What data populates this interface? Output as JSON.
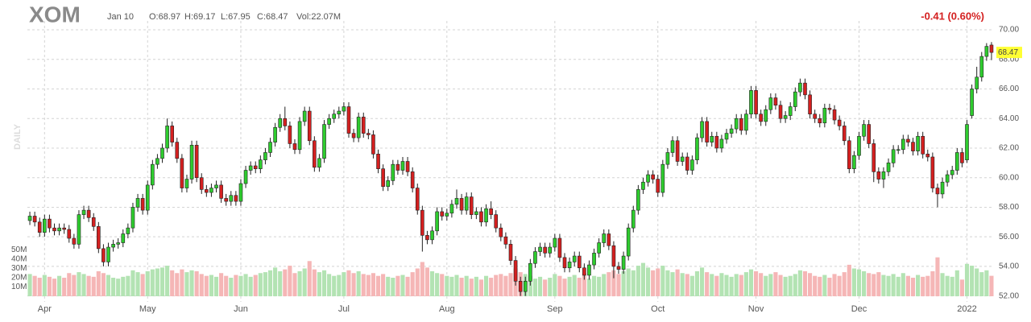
{
  "chart_data": {
    "type": "candlestick",
    "title": "XOM",
    "annotations": [
      "Jan 10",
      "O:68.97",
      "H:69.17",
      "L:67.95",
      "C:68.47",
      "Vol:22.07M"
    ],
    "change_label": "-0.41 (0.60%)",
    "last_label": "68.47",
    "period_label": "DAILY",
    "categories": [
      null,
      null,
      null,
      "Apr",
      null,
      null,
      null,
      null,
      null,
      null,
      null,
      null,
      null,
      null,
      null,
      null,
      null,
      null,
      null,
      null,
      null,
      null,
      null,
      null,
      "May",
      null,
      null,
      null,
      null,
      null,
      null,
      null,
      null,
      null,
      null,
      null,
      null,
      null,
      null,
      null,
      null,
      null,
      null,
      "Jun",
      null,
      null,
      null,
      null,
      null,
      null,
      null,
      null,
      null,
      null,
      null,
      null,
      null,
      null,
      null,
      null,
      null,
      null,
      null,
      null,
      "Jul",
      null,
      null,
      null,
      null,
      null,
      null,
      null,
      null,
      null,
      null,
      null,
      null,
      null,
      null,
      null,
      null,
      null,
      null,
      null,
      null,
      "Aug",
      null,
      null,
      null,
      null,
      null,
      null,
      null,
      null,
      null,
      null,
      null,
      null,
      null,
      null,
      null,
      null,
      null,
      null,
      null,
      null,
      null,
      "Sep",
      null,
      null,
      null,
      null,
      null,
      null,
      null,
      null,
      null,
      null,
      null,
      null,
      null,
      null,
      null,
      null,
      null,
      null,
      null,
      null,
      "Oct",
      null,
      null,
      null,
      null,
      null,
      null,
      null,
      null,
      null,
      null,
      null,
      null,
      null,
      null,
      null,
      null,
      null,
      null,
      null,
      "Nov",
      null,
      null,
      null,
      null,
      null,
      null,
      null,
      null,
      null,
      null,
      null,
      null,
      null,
      null,
      null,
      null,
      null,
      null,
      null,
      null,
      "Dec",
      null,
      null,
      null,
      null,
      null,
      null,
      null,
      null,
      null,
      null,
      null,
      null,
      null,
      null,
      null,
      null,
      null,
      null,
      null,
      null,
      null,
      "2022",
      null,
      null,
      null,
      null,
      null
    ],
    "open": [
      57.1,
      57.4,
      57.0,
      56.3,
      57.2,
      56.6,
      56.4,
      56.6,
      56.5,
      55.9,
      55.5,
      57.5,
      57.8,
      57.3,
      56.7,
      55.2,
      54.3,
      55.3,
      55.5,
      55.6,
      56.2,
      56.6,
      58.0,
      58.6,
      57.8,
      59.5,
      60.9,
      61.3,
      62.0,
      63.5,
      62.4,
      61.3,
      59.3,
      59.9,
      62.2,
      60.0,
      59.2,
      59.0,
      59.3,
      59.5,
      58.6,
      58.4,
      58.8,
      58.4,
      59.6,
      60.5,
      60.8,
      60.6,
      61.2,
      61.7,
      62.4,
      63.4,
      64.0,
      63.5,
      62.3,
      61.9,
      63.8,
      64.5,
      62.5,
      60.7,
      61.3,
      63.6,
      64.0,
      64.3,
      64.5,
      64.8,
      63.0,
      62.7,
      64.1,
      63.0,
      62.9,
      61.6,
      60.6,
      59.4,
      59.8,
      60.9,
      60.5,
      61.1,
      60.4,
      59.3,
      57.8,
      56.1,
      55.8,
      56.4,
      57.7,
      57.4,
      57.6,
      58.2,
      58.6,
      57.8,
      58.7,
      57.5,
      57.7,
      57.0,
      57.9,
      57.5,
      56.6,
      56.0,
      55.5,
      54.4,
      53.0,
      52.3,
      53.0,
      54.2,
      55.0,
      55.3,
      54.9,
      55.3,
      55.9,
      54.6,
      53.9,
      54.3,
      54.7,
      53.9,
      53.4,
      54.1,
      54.9,
      55.6,
      56.2,
      55.4,
      54.0,
      53.8,
      54.7,
      56.6,
      57.8,
      59.2,
      59.7,
      60.2,
      59.9,
      59.0,
      60.9,
      61.7,
      62.5,
      61.1,
      61.4,
      60.5,
      61.2,
      62.7,
      63.8,
      62.4,
      62.8,
      62.0,
      62.6,
      63.0,
      63.3,
      64.0,
      63.2,
      64.3,
      65.9,
      64.3,
      63.8,
      64.6,
      65.4,
      64.9,
      64.0,
      64.2,
      64.8,
      65.8,
      66.4,
      65.6,
      64.3,
      64.0,
      63.7,
      64.7,
      64.6,
      63.9,
      63.5,
      62.5,
      60.6,
      61.5,
      62.8,
      63.6,
      62.3,
      60.4,
      59.9,
      60.4,
      61.0,
      61.9,
      61.9,
      62.6,
      62.4,
      61.8,
      62.8,
      61.6,
      61.4,
      59.3,
      58.9,
      59.7,
      60.2,
      60.5,
      61.7,
      61.2,
      64.2,
      66.0,
      66.8,
      68.2,
      68.97
    ],
    "high": [
      57.7,
      57.7,
      57.3,
      57.5,
      57.5,
      56.9,
      56.9,
      56.9,
      56.8,
      56.2,
      57.8,
      58.1,
      58.1,
      57.6,
      57.0,
      55.5,
      55.6,
      55.8,
      55.9,
      56.5,
      56.9,
      58.3,
      58.9,
      58.9,
      59.8,
      61.2,
      61.6,
      62.3,
      64.0,
      63.8,
      62.7,
      61.6,
      60.2,
      62.5,
      62.5,
      60.3,
      59.5,
      59.6,
      59.8,
      59.8,
      58.9,
      59.1,
      59.1,
      59.9,
      60.8,
      61.1,
      61.1,
      61.5,
      62.0,
      62.7,
      63.7,
      64.3,
      64.8,
      63.8,
      62.6,
      64.1,
      64.8,
      64.8,
      62.8,
      61.6,
      63.9,
      64.3,
      64.6,
      64.8,
      65.1,
      65.1,
      63.3,
      64.4,
      64.4,
      63.3,
      63.2,
      61.9,
      60.9,
      60.1,
      61.2,
      61.2,
      61.4,
      61.4,
      60.7,
      59.6,
      58.1,
      56.4,
      56.7,
      58.0,
      58.0,
      57.9,
      58.5,
      59.2,
      58.9,
      59.0,
      59.0,
      58.0,
      58.0,
      58.2,
      58.4,
      57.8,
      56.9,
      56.3,
      55.8,
      54.7,
      53.3,
      53.3,
      54.5,
      55.3,
      55.6,
      55.6,
      55.6,
      56.2,
      56.2,
      54.9,
      54.6,
      55.0,
      55.0,
      54.2,
      54.4,
      55.2,
      55.9,
      56.5,
      56.5,
      55.7,
      54.3,
      55.0,
      56.9,
      58.1,
      59.5,
      60.0,
      60.5,
      60.5,
      60.2,
      61.2,
      62.0,
      62.8,
      62.8,
      61.7,
      61.7,
      61.5,
      63.0,
      64.1,
      64.1,
      63.1,
      63.1,
      62.9,
      63.3,
      63.6,
      64.3,
      64.3,
      64.6,
      66.2,
      66.2,
      64.6,
      64.9,
      65.7,
      65.7,
      65.2,
      64.5,
      65.1,
      66.1,
      66.7,
      66.7,
      65.9,
      64.6,
      64.3,
      65.0,
      65.0,
      64.9,
      64.2,
      63.8,
      62.8,
      61.8,
      63.1,
      63.9,
      63.9,
      62.6,
      60.7,
      60.7,
      61.3,
      62.2,
      62.2,
      62.9,
      62.9,
      62.7,
      63.1,
      63.1,
      61.9,
      61.7,
      59.6,
      60.0,
      60.5,
      60.8,
      62.0,
      62.0,
      63.9,
      66.3,
      67.5,
      68.5,
      69.1,
      69.17
    ],
    "low": [
      56.8,
      56.7,
      56.0,
      56.0,
      56.3,
      56.1,
      56.1,
      56.2,
      55.6,
      55.2,
      55.2,
      57.2,
      57.0,
      56.4,
      54.9,
      54.0,
      54.0,
      55.0,
      55.2,
      55.3,
      55.9,
      56.3,
      57.7,
      57.5,
      57.5,
      59.2,
      60.6,
      61.0,
      61.7,
      62.1,
      61.0,
      59.0,
      59.0,
      59.6,
      59.7,
      58.9,
      58.7,
      58.7,
      59.0,
      58.3,
      58.1,
      58.1,
      58.1,
      58.1,
      59.3,
      60.2,
      60.3,
      60.3,
      60.9,
      61.4,
      62.1,
      63.1,
      63.2,
      62.0,
      61.6,
      61.6,
      63.5,
      62.2,
      60.4,
      60.4,
      61.0,
      63.3,
      63.7,
      64.0,
      64.2,
      62.7,
      62.4,
      62.4,
      62.7,
      62.6,
      61.3,
      60.3,
      59.1,
      59.1,
      59.5,
      60.2,
      60.2,
      60.1,
      59.0,
      57.5,
      55.0,
      55.5,
      55.5,
      56.1,
      57.1,
      57.1,
      57.3,
      57.9,
      57.5,
      57.5,
      57.2,
      57.2,
      56.7,
      56.7,
      57.2,
      56.3,
      55.7,
      55.2,
      54.1,
      52.7,
      52.0,
      52.0,
      52.7,
      53.9,
      54.7,
      54.6,
      54.6,
      55.0,
      54.3,
      53.6,
      53.6,
      54.0,
      53.6,
      53.1,
      53.1,
      53.8,
      54.6,
      55.3,
      55.1,
      53.2,
      53.5,
      53.5,
      54.4,
      56.3,
      57.5,
      58.9,
      59.4,
      59.6,
      58.7,
      58.7,
      60.6,
      61.4,
      60.8,
      60.8,
      60.2,
      60.2,
      60.9,
      62.4,
      62.1,
      62.1,
      61.7,
      61.7,
      62.3,
      62.7,
      63.0,
      62.9,
      62.9,
      64.0,
      64.0,
      63.5,
      63.5,
      64.3,
      64.6,
      63.7,
      63.7,
      63.9,
      64.5,
      65.5,
      65.3,
      64.0,
      63.7,
      63.4,
      63.4,
      64.3,
      63.6,
      63.2,
      62.2,
      60.3,
      60.3,
      61.2,
      62.5,
      62.0,
      59.7,
      59.6,
      59.3,
      60.1,
      60.7,
      61.6,
      61.6,
      62.1,
      61.5,
      61.5,
      61.3,
      61.1,
      59.0,
      58.0,
      58.6,
      59.4,
      59.9,
      60.2,
      60.7,
      61.0,
      64.0,
      65.7,
      66.5,
      67.9,
      67.95
    ],
    "close": [
      57.4,
      57.0,
      56.3,
      57.2,
      56.6,
      56.4,
      56.6,
      56.5,
      55.9,
      55.5,
      57.5,
      57.8,
      57.3,
      56.7,
      55.2,
      54.3,
      55.3,
      55.5,
      55.6,
      56.2,
      56.6,
      58.0,
      58.6,
      57.8,
      59.5,
      60.9,
      61.3,
      62.0,
      63.5,
      62.4,
      61.3,
      59.3,
      59.9,
      62.2,
      60.0,
      59.2,
      59.0,
      59.3,
      59.5,
      58.6,
      58.4,
      58.8,
      58.4,
      59.6,
      60.5,
      60.8,
      60.6,
      61.2,
      61.7,
      62.4,
      63.4,
      64.0,
      63.5,
      62.3,
      61.9,
      63.8,
      64.5,
      62.5,
      60.7,
      61.3,
      63.6,
      64.0,
      64.3,
      64.5,
      64.8,
      63.0,
      62.7,
      64.1,
      63.0,
      62.9,
      61.6,
      60.6,
      59.4,
      59.8,
      60.9,
      60.5,
      61.1,
      60.4,
      59.3,
      57.8,
      56.1,
      55.8,
      56.4,
      57.7,
      57.4,
      57.6,
      58.2,
      58.6,
      57.8,
      58.7,
      57.5,
      57.7,
      57.0,
      57.9,
      57.5,
      56.6,
      56.0,
      55.5,
      54.4,
      53.0,
      52.3,
      53.0,
      54.2,
      55.0,
      55.3,
      54.9,
      55.3,
      55.9,
      54.6,
      53.9,
      54.3,
      54.7,
      53.9,
      53.4,
      54.1,
      54.9,
      55.6,
      56.2,
      55.4,
      54.0,
      53.8,
      54.7,
      56.6,
      57.8,
      59.2,
      59.7,
      60.2,
      59.9,
      59.0,
      60.9,
      61.7,
      62.5,
      61.1,
      61.4,
      60.5,
      61.2,
      62.7,
      63.8,
      62.4,
      62.8,
      62.0,
      62.6,
      63.0,
      63.3,
      64.0,
      63.2,
      64.3,
      65.9,
      64.3,
      63.8,
      64.6,
      65.4,
      64.9,
      64.0,
      64.2,
      64.8,
      65.8,
      66.4,
      65.6,
      64.3,
      64.0,
      63.7,
      64.7,
      64.6,
      63.9,
      63.5,
      62.5,
      60.6,
      61.5,
      62.8,
      63.6,
      62.3,
      60.4,
      59.9,
      60.4,
      61.0,
      61.9,
      61.9,
      62.6,
      62.4,
      61.8,
      62.8,
      61.6,
      61.4,
      59.3,
      58.9,
      59.7,
      60.2,
      60.5,
      61.7,
      61.0,
      63.6,
      66.0,
      66.8,
      68.2,
      68.88,
      68.47
    ],
    "volume": [
      24,
      22,
      20,
      23,
      21,
      19,
      22,
      20,
      25,
      23,
      26,
      24,
      22,
      21,
      27,
      25,
      23,
      20,
      19,
      21,
      22,
      28,
      26,
      24,
      27,
      29,
      30,
      31,
      33,
      28,
      25,
      29,
      26,
      28,
      27,
      24,
      22,
      23,
      21,
      25,
      22,
      20,
      23,
      22,
      24,
      21,
      23,
      25,
      26,
      28,
      31,
      27,
      29,
      33,
      25,
      27,
      30,
      38,
      29,
      26,
      28,
      24,
      22,
      23,
      26,
      28,
      25,
      27,
      24,
      23,
      25,
      22,
      24,
      21,
      20,
      22,
      23,
      21,
      26,
      30,
      37,
      31,
      27,
      25,
      24,
      22,
      21,
      23,
      20,
      22,
      19,
      21,
      18,
      22,
      20,
      23,
      24,
      22,
      25,
      30,
      26,
      24,
      22,
      19,
      21,
      18,
      20,
      24,
      22,
      19,
      21,
      23,
      20,
      25,
      19,
      22,
      21,
      24,
      26,
      28,
      24,
      27,
      30,
      28,
      33,
      36,
      31,
      28,
      30,
      33,
      28,
      26,
      29,
      25,
      24,
      22,
      27,
      31,
      26,
      24,
      22,
      25,
      23,
      21,
      24,
      23,
      26,
      29,
      27,
      25,
      22,
      24,
      26,
      23,
      21,
      22,
      24,
      28,
      27,
      25,
      22,
      21,
      23,
      20,
      24,
      22,
      26,
      34,
      30,
      29,
      27,
      25,
      24,
      26,
      23,
      22,
      24,
      21,
      25,
      22,
      20,
      23,
      21,
      22,
      27,
      42,
      25,
      22,
      21,
      28,
      18,
      35,
      33,
      30,
      26,
      28,
      22.07
    ],
    "ylim": [
      51.6,
      70.6
    ],
    "yticks": [
      {
        "value": 52,
        "label": "52.00"
      },
      {
        "value": 54,
        "label": "54.00"
      },
      {
        "value": 56,
        "label": "56.00"
      },
      {
        "value": 58,
        "label": "58.00"
      },
      {
        "value": 60,
        "label": "60.00"
      },
      {
        "value": 62,
        "label": "62.00"
      },
      {
        "value": 64,
        "label": "64.00"
      },
      {
        "value": 66,
        "label": "66.00"
      },
      {
        "value": 68,
        "label": "68.00"
      },
      {
        "value": 70,
        "label": "70.00"
      }
    ],
    "volume_ylim": [
      0,
      80
    ],
    "volume_ticks": [
      {
        "value": 10,
        "label": "10M"
      },
      {
        "value": 20,
        "label": "20M"
      },
      {
        "value": 30,
        "label": "30M"
      },
      {
        "value": 40,
        "label": "40M"
      },
      {
        "value": 50,
        "label": "50M"
      }
    ],
    "grid": true,
    "up_color": "#2ecc2e",
    "down_color": "#d42020",
    "up_volume_color": "#b3e3b3",
    "down_volume_color": "#f5b6b6"
  }
}
